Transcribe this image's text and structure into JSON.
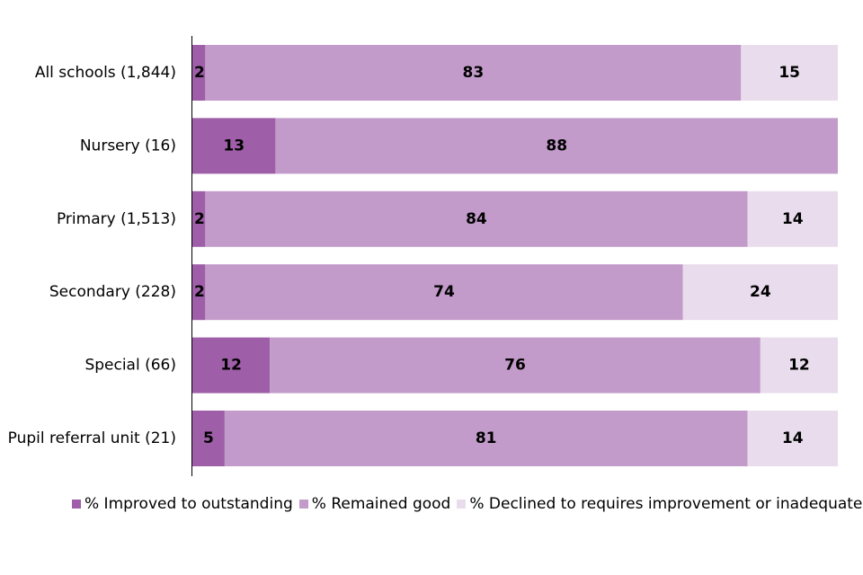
{
  "chart_data": {
    "type": "bar",
    "orientation": "horizontal",
    "stacked": true,
    "categories": [
      "All schools (1,844)",
      "Nursery (16)",
      "Primary (1,513)",
      "Secondary (228)",
      "Special (66)",
      "Pupil referral unit (21)"
    ],
    "series": [
      {
        "name": "% Improved to outstanding",
        "color": "#9e5ea8",
        "values": [
          2,
          13,
          2,
          2,
          12,
          5
        ]
      },
      {
        "name": "% Remained good",
        "color": "#c39bca",
        "values": [
          83,
          88,
          84,
          74,
          76,
          81
        ]
      },
      {
        "name": "% Declined to requires improvement or inadequate",
        "color": "#e9dcec",
        "values": [
          15,
          null,
          14,
          24,
          12,
          14
        ]
      }
    ],
    "xlim": [
      0,
      100
    ],
    "grid": false,
    "legend_position": "bottom"
  }
}
